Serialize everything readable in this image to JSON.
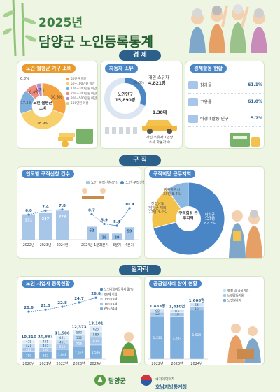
{
  "header": {
    "year": "2025년",
    "title": "담양군 노인등록통계"
  },
  "sections": {
    "economy": "경 제",
    "job_search": "구 직",
    "jobs": "일자리"
  },
  "consumption": {
    "title": "노인 월평균 가구 소비",
    "center_label": "노인 월평균 소비",
    "slices": [
      {
        "label": "50만원 미만",
        "value": 30.8,
        "color": "#f4a340"
      },
      {
        "label": "50~100만원 미만",
        "value": 38.9,
        "color": "#f7cf6b"
      },
      {
        "label": "100~200만원 미만",
        "value": 17.5,
        "color": "#7fb0dd"
      },
      {
        "label": "200~300만원 미만",
        "value": 8.4,
        "color": "#f08b7e"
      },
      {
        "label": "300~500만원 미만",
        "value": 3.7,
        "color": "#b98bd0"
      },
      {
        "label": "500만원 이상",
        "value": 0.8,
        "color": "#c6d98a"
      }
    ],
    "top_label": "0.8%"
  },
  "car": {
    "title": "자동차 소유",
    "center_label": "노인인구",
    "center_value": "15,890명",
    "percent": "30.3%",
    "fraction": 0.303,
    "owner_label": "개인 소유자",
    "owner_value": "4,821명",
    "avg_value": "1.38대",
    "avg_label_1": "개인 소유자 1인당",
    "avg_label_2": "소유 자동차 수"
  },
  "econ_activity": {
    "title": "경제활동 현황",
    "rows": [
      {
        "label": "참가율",
        "value": "61.1%"
      },
      {
        "label": "고용률",
        "value": "61.0%"
      },
      {
        "label": "비경제활동 인구",
        "value": "5.7%"
      }
    ]
  },
  "applications": {
    "title": "연도별 구직신청 건수",
    "legend_count": "노인 구직신청(건)",
    "legend_ratio": "노인 구직신청비율(%)",
    "chart_data": {
      "type": "bar",
      "categories": [
        "2022년",
        "2023년",
        "2024년",
        "2024년 1분기",
        "2분기",
        "3분기",
        "4분기"
      ],
      "values": [
        331,
        347,
        379,
        62,
        29,
        29,
        59
      ],
      "ratio": [
        6.0,
        7.4,
        7.8,
        8.7,
        5.9,
        5.4,
        10.4
      ],
      "value_labels": [
        "331",
        "347",
        "379",
        "62",
        "29",
        "29",
        "59"
      ],
      "ratio_labels": [
        "6.0",
        "7.4",
        "7.8",
        "8.7",
        "5.9",
        "5.4",
        "10.4"
      ],
      "tick_labels": [
        "2022년",
        "2023년",
        "2024년",
        "2024년 1분기",
        "2분기",
        "3분기",
        "4분기"
      ]
    }
  },
  "desired_region": {
    "title": "구직희망 근무지역",
    "center_label": "구직희망 근무지역",
    "slices": [
      {
        "label": "담양군",
        "value": 121,
        "pct": "87.2%",
        "color": "#4a86c5"
      },
      {
        "label": "광주광역시",
        "value": 33,
        "pct": "8.4%",
        "color": "#f3c24a"
      },
      {
        "label": "전라남도(담양군 제외)",
        "value": 17,
        "pct": "4.4%",
        "color": "#8ab8e0"
      }
    ],
    "label_damyang": "담양군",
    "label_damyang_val": "121명",
    "label_damyang_pct": "87.2%",
    "label_gwangju": "광주광역시",
    "label_gwangju_val": "33명 8.4%",
    "label_jeonnam": "전라남도",
    "label_jeonnam_sub": "(담양군 제외)",
    "label_jeonnam_val": "17명 4.4%"
  },
  "workers": {
    "title": "노인 사업자 등록현황",
    "legend": [
      "노인사업자등록비율(%)",
      "80세 이상",
      "75~79세",
      "70~74세",
      "65~69세"
    ],
    "chart_data": {
      "type": "bar",
      "categories": [
        "2020년",
        "2021년",
        "2022년",
        "2023년",
        "2024년"
      ],
      "totals": [
        10315,
        10887,
        11586,
        12373,
        13101
      ],
      "total_labels": [
        "10,315",
        "10,887",
        "11,586",
        "12,373",
        "13,101"
      ],
      "ratio": [
        20.6,
        21.5,
        22.8,
        24.7,
        26.8
      ],
      "ratio_labels": [
        "20.6",
        "21.5",
        "22.8",
        "24.7",
        "26.8"
      ],
      "series": [
        {
          "name": "65~69세",
          "values": [
            789,
            822,
            1048,
            1315,
            1506
          ],
          "labels": [
            "789",
            "822",
            "1,048",
            "1,315",
            "1,506"
          ],
          "color": "#7fb0dd"
        },
        {
          "name": "70~74세",
          "values": [
            482,
            416,
            553,
            716,
            830
          ],
          "labels": [
            "482",
            "416",
            "553",
            "716",
            "830"
          ],
          "color": "#a8c7e8"
        },
        {
          "name": "75~79세",
          "values": [
            421,
            452,
            461,
            552,
            589
          ],
          "labels": [
            "421",
            "452",
            "461",
            "552",
            "589"
          ],
          "color": "#c6dcef"
        },
        {
          "name": "80세 이상",
          "values": [
            425,
            431,
            461,
            590,
            625
          ],
          "labels": [
            "425",
            "431",
            "461",
            "590",
            "625"
          ],
          "color": "#e2edf8"
        }
      ]
    }
  },
  "public_jobs": {
    "title": "공공일자리 참여 현황",
    "legend": [
      "행정 및 공공기관",
      "노인활동지원",
      "노인일자리"
    ],
    "chart_data": {
      "type": "bar",
      "categories": [
        "2022년",
        "2023년",
        "2024년"
      ],
      "total_labels": [
        "1,433명",
        "1,410명",
        "1,608명"
      ],
      "totals": [
        1433,
        1410,
        1608
      ],
      "series": [
        {
          "name": "노인일자리",
          "values": [
            1351,
            1337,
            1529
          ],
          "labels": [
            "1,351",
            "1,337",
            "1,529"
          ],
          "color": "#7fb0dd"
        },
        {
          "name": "노인활동지원",
          "values": [
            22,
            10,
            15
          ],
          "labels": [
            "22",
            "10",
            "15"
          ],
          "color": "#a8c7e8"
        },
        {
          "name": "행정 및 공공기관",
          "values": [
            60,
            63,
            64
          ],
          "labels": [
            "60",
            "63",
            "64"
          ],
          "color": "#d0e2f2"
        }
      ]
    }
  },
  "footer": {
    "county": "담양군",
    "org_1": "국가데이터처",
    "org_2": "호남지방통계청"
  },
  "colors": {
    "accent_green": "#2f6d3a",
    "section_blue": "#2c5f8a",
    "bar_blue": "#a8c7e8",
    "line_blue": "#4a86c5"
  }
}
